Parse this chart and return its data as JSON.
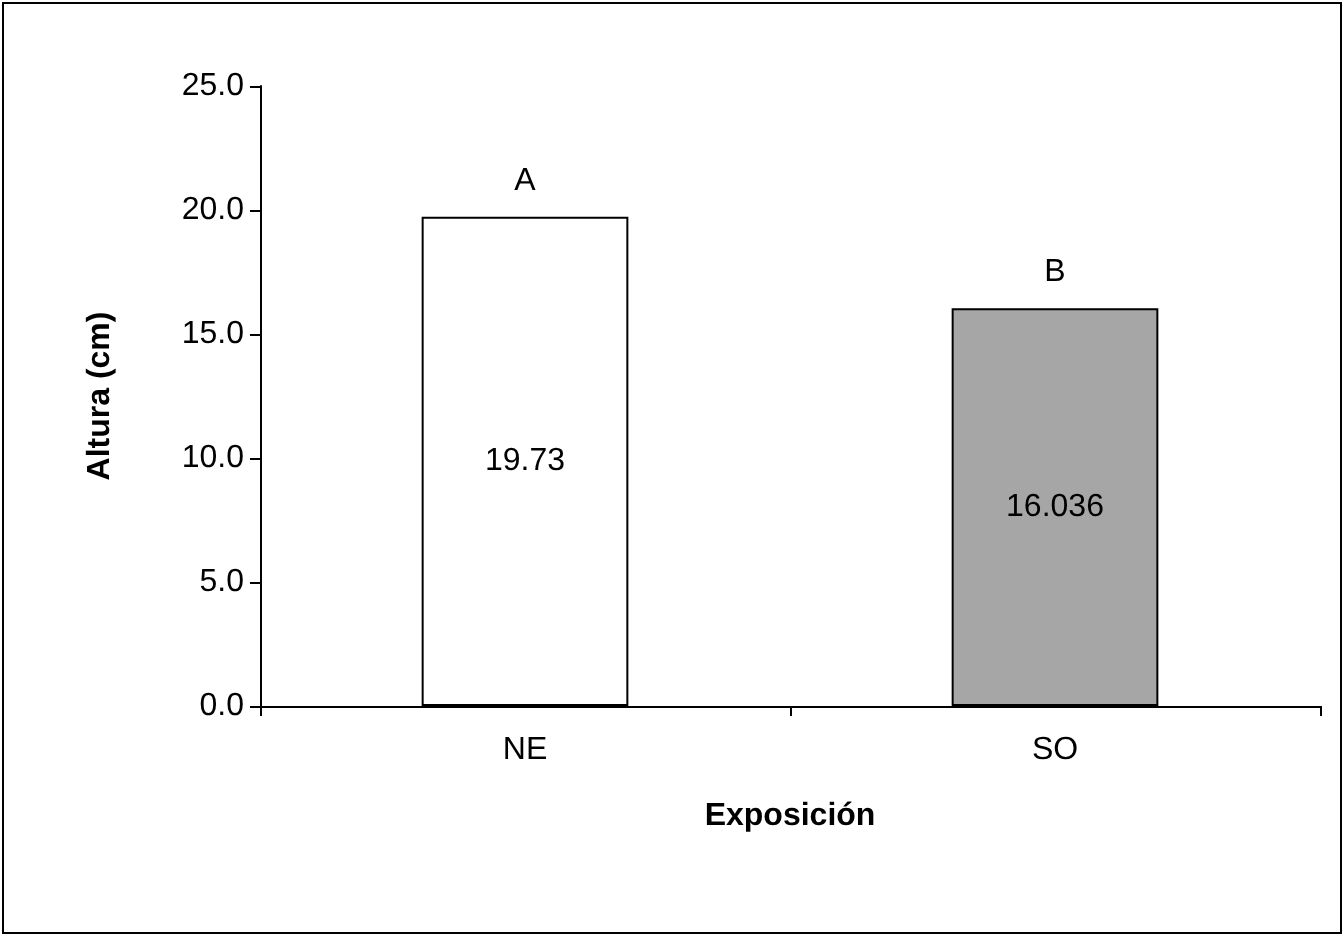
{
  "chart_data": {
    "type": "bar",
    "categories": [
      "NE",
      "SO"
    ],
    "values": [
      19.73,
      16.036
    ],
    "colors": [
      "#ffffff",
      "#a6a6a6"
    ],
    "xlabel": "Exposición",
    "ylabel": "Altura (cm)",
    "ylim": [
      0,
      25
    ],
    "yticks": [
      {
        "value": 0,
        "label": "0.0"
      },
      {
        "value": 5,
        "label": "5.0"
      },
      {
        "value": 10,
        "label": "10.0"
      },
      {
        "value": 15,
        "label": "15.0"
      },
      {
        "value": 20,
        "label": "20.0"
      },
      {
        "value": 25,
        "label": "25.0"
      }
    ],
    "data_labels": true,
    "annotations": [
      {
        "text": "A",
        "x": "NE",
        "y": 19.73
      },
      {
        "text": "B",
        "x": "SO",
        "y": 16.036
      }
    ]
  }
}
